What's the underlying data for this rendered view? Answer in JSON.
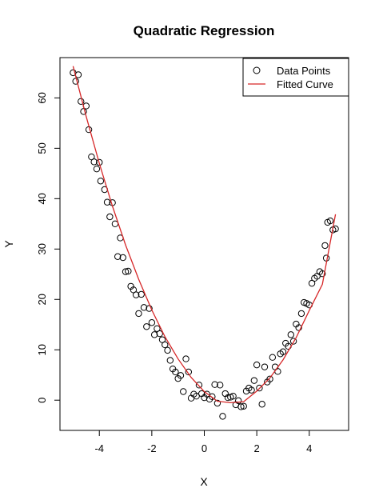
{
  "chart_data": {
    "type": "scatter",
    "title": "Quadratic Regression",
    "xlabel": "X",
    "ylabel": "Y",
    "xlim": [
      -5.5,
      5.5
    ],
    "ylim": [
      -6,
      68
    ],
    "x_ticks": [
      -4,
      -2,
      0,
      2,
      4
    ],
    "y_ticks": [
      0,
      10,
      20,
      30,
      40,
      50,
      60
    ],
    "legend": {
      "position": "top-right",
      "entries": [
        {
          "label": "Data Points",
          "marker": "open-circle",
          "color": "#000000"
        },
        {
          "label": "Fitted Curve",
          "marker": "line",
          "color": "#d62728"
        }
      ]
    },
    "series": [
      {
        "name": "Data Points",
        "kind": "points",
        "color": "#000000",
        "points": [
          [
            -5.0,
            65.0
          ],
          [
            -4.9,
            63.3
          ],
          [
            -4.8,
            64.6
          ],
          [
            -4.7,
            59.3
          ],
          [
            -4.6,
            57.3
          ],
          [
            -4.5,
            58.4
          ],
          [
            -4.4,
            53.7
          ],
          [
            -4.3,
            48.3
          ],
          [
            -4.2,
            47.3
          ],
          [
            -4.1,
            45.9
          ],
          [
            -4.0,
            47.2
          ],
          [
            -3.95,
            43.5
          ],
          [
            -3.8,
            41.8
          ],
          [
            -3.7,
            39.3
          ],
          [
            -3.6,
            36.4
          ],
          [
            -3.5,
            39.2
          ],
          [
            -3.4,
            35.0
          ],
          [
            -3.3,
            28.5
          ],
          [
            -3.2,
            32.2
          ],
          [
            -3.1,
            28.3
          ],
          [
            -3.0,
            25.5
          ],
          [
            -2.9,
            25.6
          ],
          [
            -2.8,
            22.6
          ],
          [
            -2.7,
            21.9
          ],
          [
            -2.6,
            20.9
          ],
          [
            -2.5,
            17.2
          ],
          [
            -2.4,
            21.0
          ],
          [
            -2.3,
            18.4
          ],
          [
            -2.2,
            14.6
          ],
          [
            -2.1,
            18.2
          ],
          [
            -2.0,
            15.4
          ],
          [
            -1.9,
            13.0
          ],
          [
            -1.8,
            14.2
          ],
          [
            -1.7,
            13.2
          ],
          [
            -1.6,
            12.0
          ],
          [
            -1.5,
            11.0
          ],
          [
            -1.4,
            9.9
          ],
          [
            -1.3,
            7.9
          ],
          [
            -1.2,
            6.2
          ],
          [
            -1.1,
            5.6
          ],
          [
            -1.0,
            4.3
          ],
          [
            -0.9,
            4.9
          ],
          [
            -0.8,
            1.7
          ],
          [
            -0.7,
            8.2
          ],
          [
            -0.6,
            5.6
          ],
          [
            -0.5,
            0.4
          ],
          [
            -0.4,
            1.2
          ],
          [
            -0.3,
            0.8
          ],
          [
            -0.2,
            3.0
          ],
          [
            -0.1,
            1.3
          ],
          [
            0.0,
            0.5
          ],
          [
            0.1,
            1.2
          ],
          [
            0.2,
            0.2
          ],
          [
            0.3,
            0.7
          ],
          [
            0.4,
            3.1
          ],
          [
            0.5,
            -0.6
          ],
          [
            0.6,
            3.0
          ],
          [
            0.7,
            -3.2
          ],
          [
            0.8,
            1.3
          ],
          [
            0.9,
            0.5
          ],
          [
            1.0,
            0.6
          ],
          [
            1.1,
            0.8
          ],
          [
            1.2,
            -0.9
          ],
          [
            1.3,
            -0.1
          ],
          [
            1.4,
            -1.3
          ],
          [
            1.5,
            -1.2
          ],
          [
            1.6,
            1.8
          ],
          [
            1.7,
            2.4
          ],
          [
            1.8,
            2.0
          ],
          [
            1.9,
            3.9
          ],
          [
            2.0,
            7.0
          ],
          [
            2.1,
            2.4
          ],
          [
            2.2,
            -0.8
          ],
          [
            2.3,
            6.6
          ],
          [
            2.4,
            3.6
          ],
          [
            2.5,
            4.2
          ],
          [
            2.6,
            8.5
          ],
          [
            2.7,
            6.6
          ],
          [
            2.8,
            5.7
          ],
          [
            2.9,
            9.2
          ],
          [
            3.0,
            9.6
          ],
          [
            3.1,
            11.3
          ],
          [
            3.2,
            10.7
          ],
          [
            3.3,
            13.0
          ],
          [
            3.4,
            11.7
          ],
          [
            3.5,
            15.1
          ],
          [
            3.6,
            14.4
          ],
          [
            3.7,
            17.2
          ],
          [
            3.8,
            19.4
          ],
          [
            3.9,
            19.2
          ],
          [
            4.0,
            18.9
          ],
          [
            4.1,
            23.2
          ],
          [
            4.2,
            24.2
          ],
          [
            4.3,
            24.6
          ],
          [
            4.4,
            25.5
          ],
          [
            4.5,
            25.1
          ],
          [
            4.6,
            30.7
          ],
          [
            4.65,
            28.2
          ],
          [
            4.7,
            35.3
          ],
          [
            4.8,
            35.6
          ],
          [
            4.9,
            33.8
          ],
          [
            5.0,
            34.0
          ]
        ]
      },
      {
        "name": "Fitted Curve",
        "kind": "line",
        "color": "#d62728",
        "x": [
          -5.0,
          -4.5,
          -4.0,
          -3.5,
          -3.0,
          -2.5,
          -2.0,
          -1.5,
          -1.0,
          -0.5,
          0.0,
          0.5,
          1.0,
          1.5,
          2.0,
          2.5,
          3.0,
          3.5,
          4.0,
          4.5,
          5.0
        ],
        "y": [
          66.3,
          56.3,
          47.0,
          38.5,
          30.8,
          24.0,
          17.9,
          12.6,
          8.2,
          4.5,
          1.7,
          -0.2,
          -0.5,
          -0.3,
          1.8,
          4.4,
          8.0,
          12.4,
          17.8,
          23.0,
          36.9
        ]
      }
    ]
  }
}
